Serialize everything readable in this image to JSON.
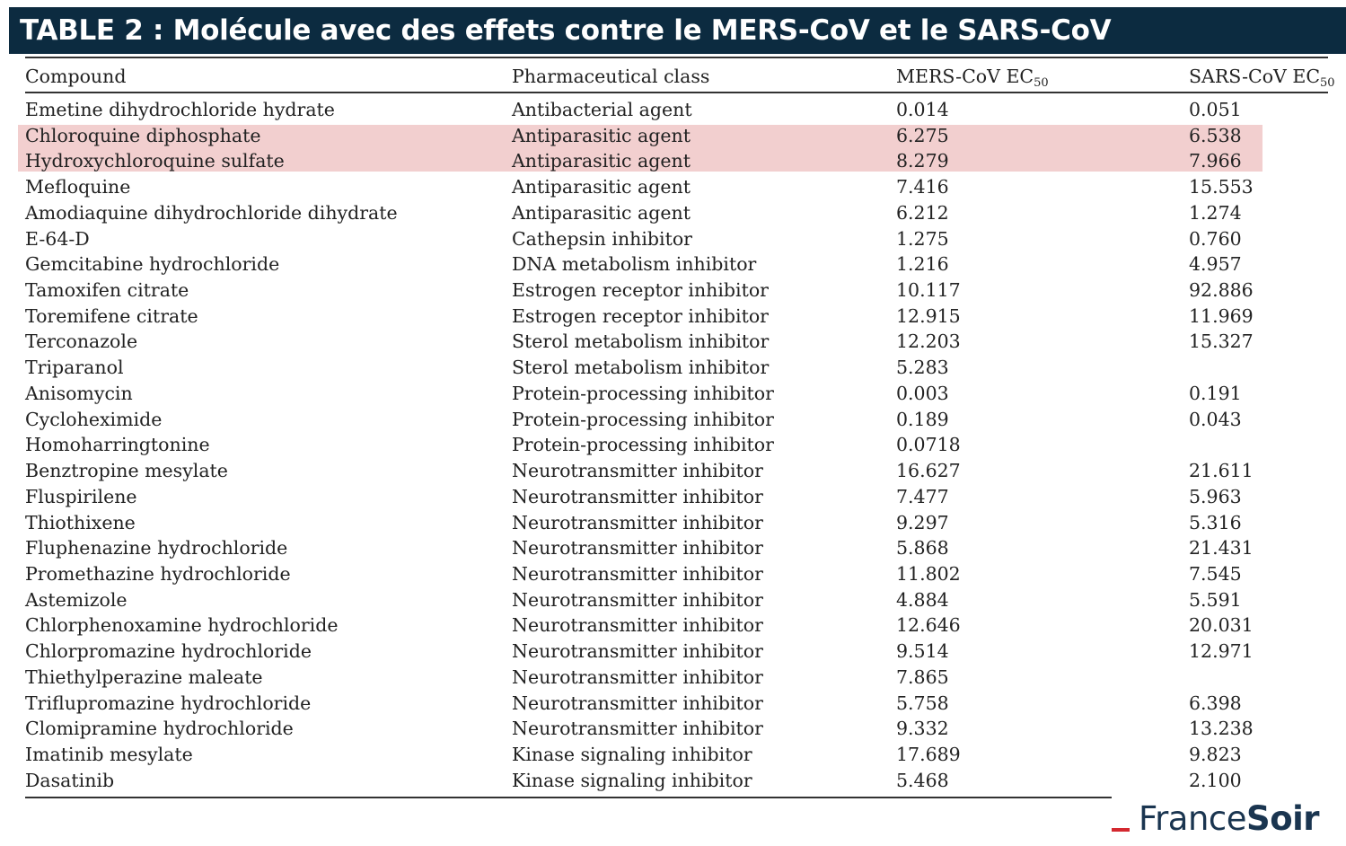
{
  "title": "TABLE 2 : Molécule avec des effets contre le MERS-CoV et le SARS-CoV",
  "columns": {
    "compound": "Compound",
    "class": "Pharmaceutical class",
    "mers": "MERS-CoV EC",
    "mers_sub": "50",
    "sars": "SARS-CoV EC",
    "sars_sub": "50"
  },
  "highlight_color": "#f2cfcf",
  "rows": [
    {
      "compound": "Emetine dihydrochloride hydrate",
      "class": "Antibacterial agent",
      "mers": "0.014",
      "sars": "0.051"
    },
    {
      "compound": "Chloroquine diphosphate",
      "class": "Antiparasitic agent",
      "mers": "6.275",
      "sars": "6.538",
      "highlighted": true
    },
    {
      "compound": "Hydroxychloroquine sulfate",
      "class": "Antiparasitic agent",
      "mers": "8.279",
      "sars": "7.966",
      "highlighted": true
    },
    {
      "compound": "Mefloquine",
      "class": "Antiparasitic agent",
      "mers": "7.416",
      "sars": "15.553"
    },
    {
      "compound": "Amodiaquine dihydrochloride dihydrate",
      "class": "Antiparasitic agent",
      "mers": "6.212",
      "sars": "1.274"
    },
    {
      "compound": "E-64-D",
      "class": "Cathepsin inhibitor",
      "mers": "1.275",
      "sars": "0.760"
    },
    {
      "compound": "Gemcitabine hydrochloride",
      "class": "DNA metabolism inhibitor",
      "mers": "1.216",
      "sars": "4.957"
    },
    {
      "compound": "Tamoxifen citrate",
      "class": "Estrogen receptor inhibitor",
      "mers": "10.117",
      "sars": "92.886"
    },
    {
      "compound": "Toremifene citrate",
      "class": "Estrogen receptor inhibitor",
      "mers": "12.915",
      "sars": "11.969"
    },
    {
      "compound": "Terconazole",
      "class": "Sterol metabolism inhibitor",
      "mers": "12.203",
      "sars": "15.327"
    },
    {
      "compound": "Triparanol",
      "class": "Sterol metabolism inhibitor",
      "mers": "5.283",
      "sars": ""
    },
    {
      "compound": "Anisomycin",
      "class": "Protein-processing inhibitor",
      "mers": "0.003",
      "sars": "0.191"
    },
    {
      "compound": "Cycloheximide",
      "class": "Protein-processing inhibitor",
      "mers": "0.189",
      "sars": "0.043"
    },
    {
      "compound": "Homoharringtonine",
      "class": "Protein-processing inhibitor",
      "mers": "0.0718",
      "sars": ""
    },
    {
      "compound": "Benztropine mesylate",
      "class": "Neurotransmitter inhibitor",
      "mers": "16.627",
      "sars": "21.611"
    },
    {
      "compound": "Fluspirilene",
      "class": "Neurotransmitter inhibitor",
      "mers": "7.477",
      "sars": "5.963"
    },
    {
      "compound": "Thiothixene",
      "class": "Neurotransmitter inhibitor",
      "mers": "9.297",
      "sars": "5.316"
    },
    {
      "compound": "Fluphenazine hydrochloride",
      "class": "Neurotransmitter inhibitor",
      "mers": "5.868",
      "sars": "21.431"
    },
    {
      "compound": "Promethazine hydrochloride",
      "class": "Neurotransmitter inhibitor",
      "mers": "11.802",
      "sars": "7.545"
    },
    {
      "compound": "Astemizole",
      "class": "Neurotransmitter inhibitor",
      "mers": "4.884",
      "sars": "5.591"
    },
    {
      "compound": "Chlorphenoxamine hydrochloride",
      "class": "Neurotransmitter inhibitor",
      "mers": "12.646",
      "sars": "20.031"
    },
    {
      "compound": "Chlorpromazine hydrochloride",
      "class": "Neurotransmitter inhibitor",
      "mers": "9.514",
      "sars": "12.971"
    },
    {
      "compound": "Thiethylperazine maleate",
      "class": "Neurotransmitter inhibitor",
      "mers": "7.865",
      "sars": ""
    },
    {
      "compound": "Triflupromazine hydrochloride",
      "class": "Neurotransmitter inhibitor",
      "mers": "5.758",
      "sars": "6.398"
    },
    {
      "compound": "Clomipramine hydrochloride",
      "class": "Neurotransmitter inhibitor",
      "mers": "9.332",
      "sars": "13.238"
    },
    {
      "compound": "Imatinib mesylate",
      "class": "Kinase signaling inhibitor",
      "mers": "17.689",
      "sars": "9.823"
    },
    {
      "compound": "Dasatinib",
      "class": "Kinase signaling inhibitor",
      "mers": "5.468",
      "sars": "2.100"
    }
  ],
  "logo": {
    "part1": "France",
    "part2": "Soir",
    "accent_color": "#d4282f",
    "text_color": "#1a3550"
  }
}
